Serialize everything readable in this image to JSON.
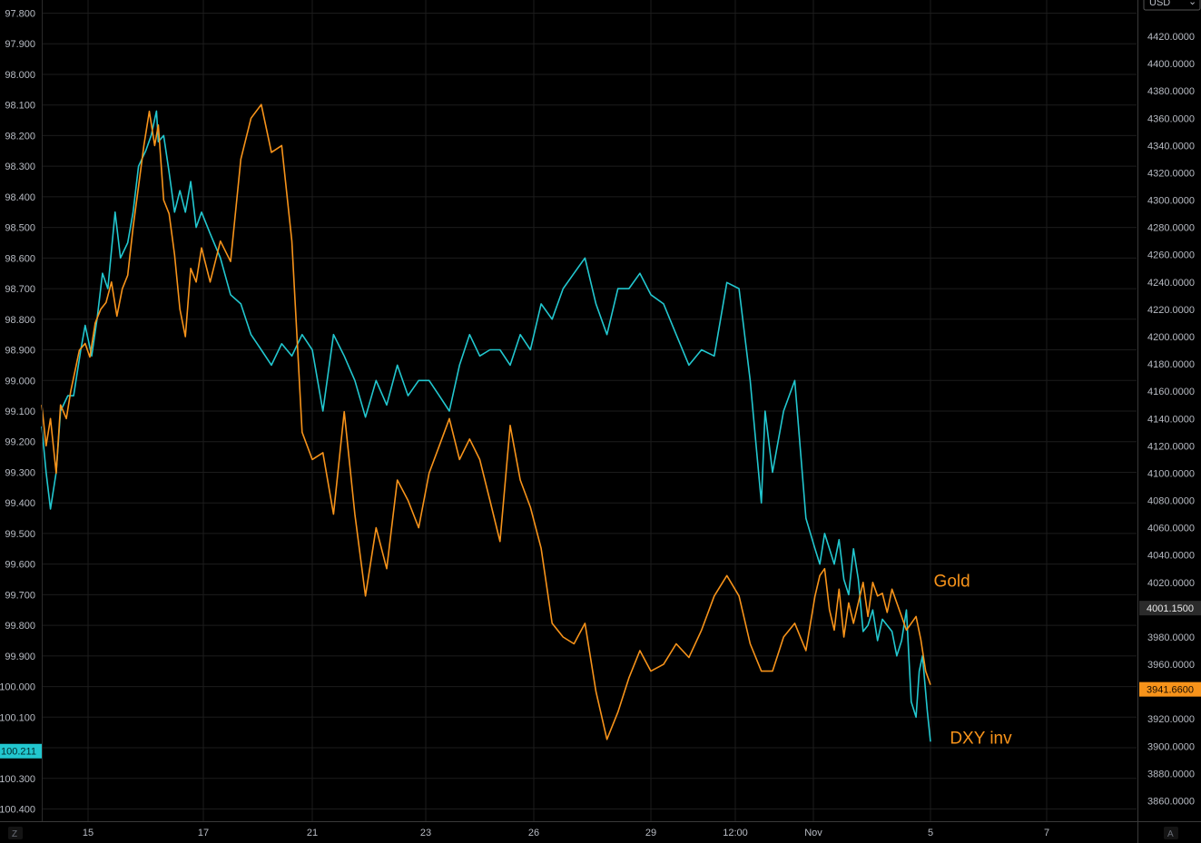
{
  "chart_data": {
    "type": "line",
    "colors": {
      "background": "#000000",
      "grid": "#1c1c1c",
      "tick_text": "#b8bcc4",
      "gold": "#f7931a",
      "dxy_inv": "#22c7cf"
    },
    "x_tick_labels": [
      "15",
      "17",
      "21",
      "23",
      "26",
      "29",
      "12:00",
      "Nov",
      "5",
      "7"
    ],
    "left_axis": {
      "inverted": true,
      "range": [
        97.8,
        100.4
      ],
      "tick_labels": [
        "97.800",
        "97.900",
        "98.000",
        "98.100",
        "98.200",
        "98.300",
        "98.400",
        "98.500",
        "98.600",
        "98.700",
        "98.800",
        "98.900",
        "99.000",
        "99.100",
        "99.200",
        "99.300",
        "99.400",
        "99.500",
        "99.600",
        "99.700",
        "99.800",
        "99.900",
        "100.000",
        "100.100",
        "100.200",
        "100.300",
        "100.400"
      ],
      "last_value_label": "100.211"
    },
    "right_axis": {
      "range": [
        3850,
        4430
      ],
      "tick_labels": [
        "4420.0000",
        "4400.0000",
        "4380.0000",
        "4360.0000",
        "4340.0000",
        "4320.0000",
        "4300.0000",
        "4280.0000",
        "4260.0000",
        "4240.0000",
        "4220.0000",
        "4200.0000",
        "4180.0000",
        "4160.0000",
        "4140.0000",
        "4120.0000",
        "4100.0000",
        "4080.0000",
        "4060.0000",
        "4040.0000",
        "4020.0000",
        "4000.0000",
        "3980.0000",
        "3960.0000",
        "3940.0000",
        "3920.0000",
        "3900.0000",
        "3880.0000",
        "3860.0000"
      ],
      "price_badges": [
        {
          "label": "4001.1500",
          "value": 4001.15,
          "style": "dark"
        },
        {
          "label": "3941.6600",
          "value": 3941.66,
          "style": "gold"
        }
      ],
      "top_box_label": "USD"
    },
    "annotations": [
      {
        "text": "Gold",
        "anchor_value": 4017,
        "anchor_x": 34.0
      },
      {
        "text": "DXY inv",
        "anchor_value": 3902,
        "anchor_x": 35.0
      }
    ],
    "corner_buttons": [
      "Z",
      "A"
    ],
    "series": [
      {
        "key": "dxy_inv",
        "axis": "left",
        "x": [
          0,
          0.3,
          0.6,
          1.0,
          1.3,
          1.8,
          2.2,
          2.7,
          3.0,
          3.4,
          3.7,
          4.0,
          4.3,
          4.7,
          5.0,
          5.4,
          5.7,
          6.0,
          6.4,
          6.7,
          7.0,
          7.1,
          7.4,
          7.7,
          8.0,
          8.3,
          8.6,
          8.9,
          9.2,
          9.5,
          9.8,
          10.1,
          10.4,
          10.7,
          11.0,
          11.3,
          11.6,
          11.9,
          12.2,
          12.5,
          12.8,
          13.1,
          13.4,
          13.7,
          14.0,
          14.3,
          14.6,
          14.9,
          15.2,
          15.5,
          15.8,
          16.1,
          16.4,
          16.7,
          17.0,
          17.3,
          17.6,
          17.9,
          18.2,
          18.5,
          18.8,
          19.1,
          19.4,
          19.7,
          20.0,
          20.3,
          20.6,
          20.9,
          21.2,
          21.5,
          21.8,
          22.1,
          22.4,
          22.7,
          23.0,
          23.3,
          23.6,
          23.9,
          24.2,
          24.5,
          24.8,
          25.1,
          25.2,
          25.4,
          25.7,
          26.0,
          26.3,
          26.6,
          26.9,
          27.2,
          27.5,
          27.8,
          28.1,
          28.4,
          28.7,
          29.0,
          29.3,
          29.6,
          29.9,
          30.2,
          30.5,
          30.8,
          31.1,
          31.4,
          31.7,
          32.0,
          32.3,
          32.6,
          32.9,
          33.1,
          33.3,
          33.6,
          33.8
        ],
        "values": [
          99.15,
          99.3,
          99.42,
          99.3,
          99.1,
          99.05,
          99.05,
          98.9,
          98.82,
          98.92,
          98.8,
          98.65,
          98.7,
          98.45,
          98.6,
          98.55,
          98.45,
          98.3,
          98.25,
          98.2,
          98.12,
          98.22,
          98.2,
          98.32,
          98.45,
          98.38,
          98.45,
          98.35,
          98.5,
          98.45,
          98.52,
          98.6,
          98.72,
          98.75,
          98.85,
          98.9,
          98.95,
          98.88,
          98.92,
          98.85,
          98.9,
          99.1,
          98.85,
          98.92,
          99.0,
          99.12,
          99.0,
          99.08,
          98.95,
          99.05,
          99.0,
          99.0,
          99.05,
          99.1,
          98.95,
          98.85,
          98.92,
          98.9,
          98.9,
          98.95,
          98.85,
          98.9,
          98.75,
          98.8,
          98.7,
          98.65,
          98.6,
          98.75,
          98.85,
          98.7,
          98.7,
          98.65,
          98.72,
          98.75,
          98.85,
          98.95,
          98.9,
          98.92,
          98.68,
          98.7,
          99.0,
          99.4,
          99.1,
          99.3,
          99.1,
          99.0,
          99.45,
          99.55,
          99.6,
          99.5,
          99.55,
          99.6,
          99.52,
          99.65,
          99.7,
          99.55,
          99.65,
          99.82,
          99.8,
          99.75,
          99.85,
          99.78,
          99.8,
          99.82,
          99.9,
          99.85,
          99.75,
          100.05,
          100.1,
          99.95,
          99.9,
          100.08,
          100.18
        ]
      },
      {
        "key": "gold",
        "axis": "right",
        "x": [
          0,
          0.3,
          0.6,
          1.0,
          1.3,
          1.7,
          2.0,
          2.3,
          2.6,
          3.0,
          3.3,
          3.6,
          3.9,
          4.2,
          4.5,
          4.8,
          5.1,
          5.4,
          5.7,
          6.0,
          6.3,
          6.6,
          6.9,
          7.1,
          7.4,
          7.7,
          8.0,
          8.3,
          8.6,
          8.9,
          9.2,
          9.5,
          9.8,
          10.1,
          10.4,
          10.7,
          11.0,
          11.3,
          11.6,
          11.9,
          12.2,
          12.5,
          12.8,
          13.1,
          13.4,
          13.7,
          14.0,
          14.3,
          14.6,
          14.9,
          15.2,
          15.5,
          15.8,
          16.1,
          16.4,
          16.7,
          17.0,
          17.3,
          17.6,
          17.9,
          18.2,
          18.5,
          18.8,
          19.1,
          19.4,
          19.7,
          20.0,
          20.3,
          20.6,
          20.9,
          21.2,
          21.5,
          21.8,
          22.1,
          22.4,
          22.7,
          23.0,
          23.3,
          23.6,
          23.9,
          24.2,
          24.5,
          24.8,
          25.1,
          25.4,
          25.7,
          26.0,
          26.3,
          26.6,
          26.9,
          27.2,
          27.5,
          27.8,
          28.1,
          28.4,
          28.7,
          29.0,
          29.3,
          29.6,
          29.9,
          30.2,
          30.5,
          30.8,
          31.1,
          31.4,
          31.7,
          32.0,
          32.3,
          32.6,
          32.9,
          33.2,
          33.5,
          33.8
        ],
        "values": [
          4150,
          4120,
          4140,
          4100,
          4150,
          4140,
          4160,
          4175,
          4190,
          4195,
          4185,
          4210,
          4220,
          4225,
          4240,
          4215,
          4235,
          4245,
          4280,
          4310,
          4340,
          4365,
          4340,
          4355,
          4300,
          4290,
          4260,
          4220,
          4200,
          4250,
          4240,
          4265,
          4240,
          4270,
          4255,
          4330,
          4360,
          4370,
          4335,
          4340,
          4270,
          4130,
          4110,
          4115,
          4070,
          4145,
          4070,
          4010,
          4060,
          4030,
          4095,
          4080,
          4060,
          4100,
          4120,
          4140,
          4110,
          4125,
          4110,
          4080,
          4050,
          4135,
          4095,
          4075,
          4045,
          3990,
          3980,
          3975,
          3990,
          3940,
          3905,
          3925,
          3950,
          3970,
          3955,
          3960,
          3975,
          3965,
          3985,
          4010,
          4025,
          4010,
          3975,
          3955,
          3955,
          3980,
          3990,
          3970,
          4010,
          4025,
          4030,
          4000,
          3985,
          4015,
          3980,
          4005,
          3990,
          4005,
          4020,
          3995,
          4020,
          4010,
          4012,
          3998,
          4015,
          4005,
          3995,
          3985,
          3990,
          3995,
          3978,
          3955,
          3945
        ]
      }
    ]
  }
}
